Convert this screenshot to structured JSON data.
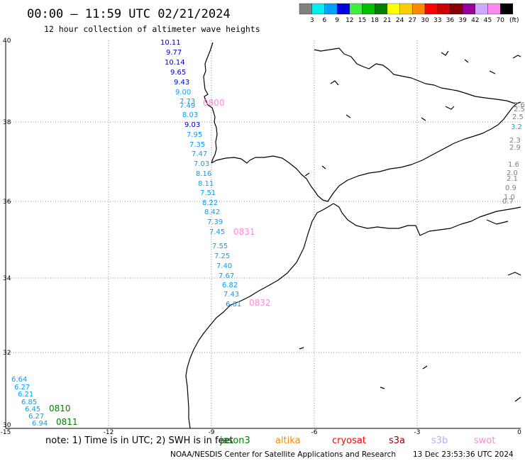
{
  "title": "00:00 – 11:59 UTC 02/21/2024",
  "subtitle": "12 hour collection of altimeter wave heights",
  "legend": {
    "unit_label": "(ft)",
    "entries": [
      {
        "label": "3",
        "color": "#808080"
      },
      {
        "label": "6",
        "color": "#00eeee"
      },
      {
        "label": "9",
        "color": "#00a0ff"
      },
      {
        "label": "12",
        "color": "#0000e0"
      },
      {
        "label": "15",
        "color": "#40ee40"
      },
      {
        "label": "18",
        "color": "#00c000"
      },
      {
        "label": "21",
        "color": "#008000"
      },
      {
        "label": "24",
        "color": "#ffff00"
      },
      {
        "label": "27",
        "color": "#ffcc00"
      },
      {
        "label": "30",
        "color": "#ff8800"
      },
      {
        "label": "33",
        "color": "#ff0000"
      },
      {
        "label": "36",
        "color": "#cc0000"
      },
      {
        "label": "39",
        "color": "#880000"
      },
      {
        "label": "42",
        "color": "#990099"
      },
      {
        "label": "45",
        "color": "#ccaaff"
      },
      {
        "label": "70",
        "color": "#ff88ee"
      },
      {
        "label": "",
        "color": "#000000"
      }
    ]
  },
  "axes": {
    "lon_ticks": [
      "-15",
      "-12",
      "-9",
      "-6",
      "-3",
      "0"
    ],
    "lat_ticks": [
      "40",
      "38",
      "36",
      "34",
      "32",
      "30"
    ]
  },
  "tracks": [
    {
      "name": "track-jason",
      "points": [
        {
          "v": "10.11",
          "color": "#0000cc"
        },
        {
          "v": "9.77",
          "color": "#0000cc"
        },
        {
          "v": "10.14",
          "color": "#0000cc"
        },
        {
          "v": "9.65",
          "color": "#0000cc"
        },
        {
          "v": "9.43",
          "color": "#0000cc"
        },
        {
          "v": "9.00",
          "color": "#00a0ff"
        },
        {
          "v": "7.73",
          "color": "#00a0ff"
        },
        {
          "v": "7.49",
          "color": "#00a0ff"
        },
        {
          "v": "8.03",
          "color": "#00a0ff"
        },
        {
          "v": "9.03",
          "color": "#0000cc"
        },
        {
          "v": "7.95",
          "color": "#00a0ff"
        },
        {
          "v": "7.35",
          "color": "#00a0ff"
        },
        {
          "v": "7.47",
          "color": "#00a0ff"
        },
        {
          "v": "7.03",
          "color": "#00a0ff"
        },
        {
          "v": "8.16",
          "color": "#00a0ff"
        },
        {
          "v": "8.11",
          "color": "#00a0ff"
        },
        {
          "v": "7.51",
          "color": "#00a0ff"
        },
        {
          "v": "8.22",
          "color": "#00a0ff"
        },
        {
          "v": "8.42",
          "color": "#00a0ff"
        },
        {
          "v": "7.39",
          "color": "#00a0ff"
        },
        {
          "v": "7.45",
          "color": "#00a0ff"
        },
        {
          "v": "7.55",
          "color": "#00a0ff"
        },
        {
          "v": "7.25",
          "color": "#00a0ff"
        },
        {
          "v": "7.40",
          "color": "#00a0ff"
        },
        {
          "v": "7.67",
          "color": "#00a0ff"
        },
        {
          "v": "6.82",
          "color": "#00a0ff"
        },
        {
          "v": "7.43",
          "color": "#00a0ff"
        },
        {
          "v": "6.61",
          "color": "#00a0ff"
        }
      ]
    },
    {
      "name": "track-sw",
      "points": [
        {
          "v": "6.64",
          "color": "#00a0ff"
        },
        {
          "v": "6.27",
          "color": "#00a0ff"
        },
        {
          "v": "6.21",
          "color": "#00a0ff"
        },
        {
          "v": "6.85",
          "color": "#00a0ff"
        },
        {
          "v": "6.45",
          "color": "#00a0ff"
        },
        {
          "v": "6.27",
          "color": "#00a0ff"
        },
        {
          "v": "6.94",
          "color": "#00a0ff"
        }
      ]
    },
    {
      "name": "track-east",
      "points": [
        {
          "v": "2.6",
          "color": "#808080"
        },
        {
          "v": "2.5",
          "color": "#808080"
        },
        {
          "v": "2.5",
          "color": "#808080"
        },
        {
          "v": "3.2",
          "color": "#00a0ff"
        },
        {
          "v": "2.3",
          "color": "#808080"
        },
        {
          "v": "2.9",
          "color": "#808080"
        },
        {
          "v": "1.6",
          "color": "#808080"
        },
        {
          "v": "2.0",
          "color": "#808080"
        },
        {
          "v": "2.1",
          "color": "#808080"
        },
        {
          "v": "0.9",
          "color": "#808080"
        },
        {
          "v": "1.0",
          "color": "#808080"
        },
        {
          "v": "0.7",
          "color": "#808080"
        }
      ]
    }
  ],
  "pass_labels": [
    {
      "name": "pass-0810",
      "text": "0810",
      "color": "#008000"
    },
    {
      "name": "pass-0811",
      "text": "0811",
      "color": "#008000"
    },
    {
      "name": "pass-0831",
      "text": "0831",
      "color": "#ff88dd"
    },
    {
      "name": "pass-0832",
      "text": "0832",
      "color": "#ff88dd"
    },
    {
      "name": "pass-0800",
      "text": "0800",
      "color": "#ff88dd"
    }
  ],
  "note": {
    "text": "note: 1) Time is in UTC; 2) SWH is in feet",
    "missions": [
      {
        "name": "jason3",
        "text": "jason3",
        "color": "#008000"
      },
      {
        "name": "altika",
        "text": "altika",
        "color": "#ff8800"
      },
      {
        "name": "cryosat",
        "text": "cryosat",
        "color": "#ff0000"
      },
      {
        "name": "s3a",
        "text": "s3a",
        "color": "#990000"
      },
      {
        "name": "s3b",
        "text": "s3b",
        "color": "#bbaaff"
      },
      {
        "name": "swot",
        "text": "swot",
        "color": "#ff88dd"
      }
    ]
  },
  "footer": {
    "credit": "NOAA/NESDIS Center for Satellite Applications and Research",
    "timestamp": "13 Dec 23:53:36 UTC 2024"
  }
}
